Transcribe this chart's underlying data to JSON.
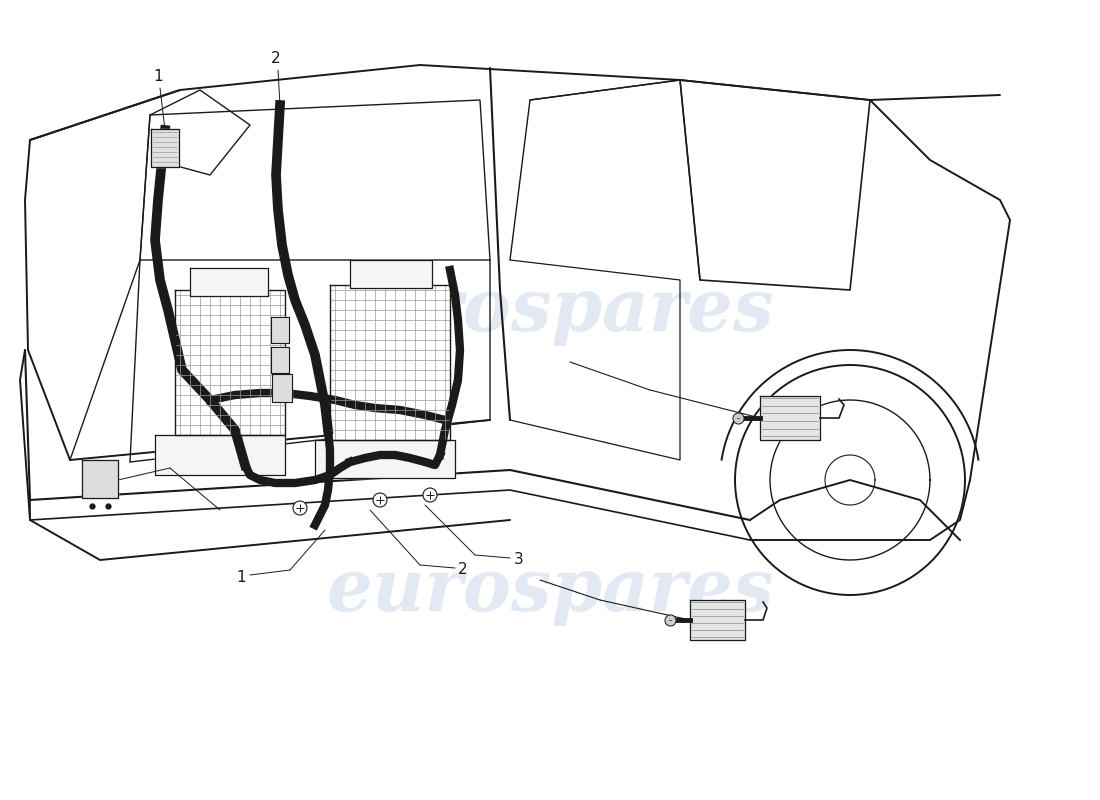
{
  "figsize": [
    11.0,
    8.0
  ],
  "dpi": 100,
  "bg": "#ffffff",
  "lc": "#1a1a1a",
  "wm_color": "#c8d4e8",
  "wm_alpha": 0.5,
  "wm_text": "eurospares",
  "label_fs": 11
}
